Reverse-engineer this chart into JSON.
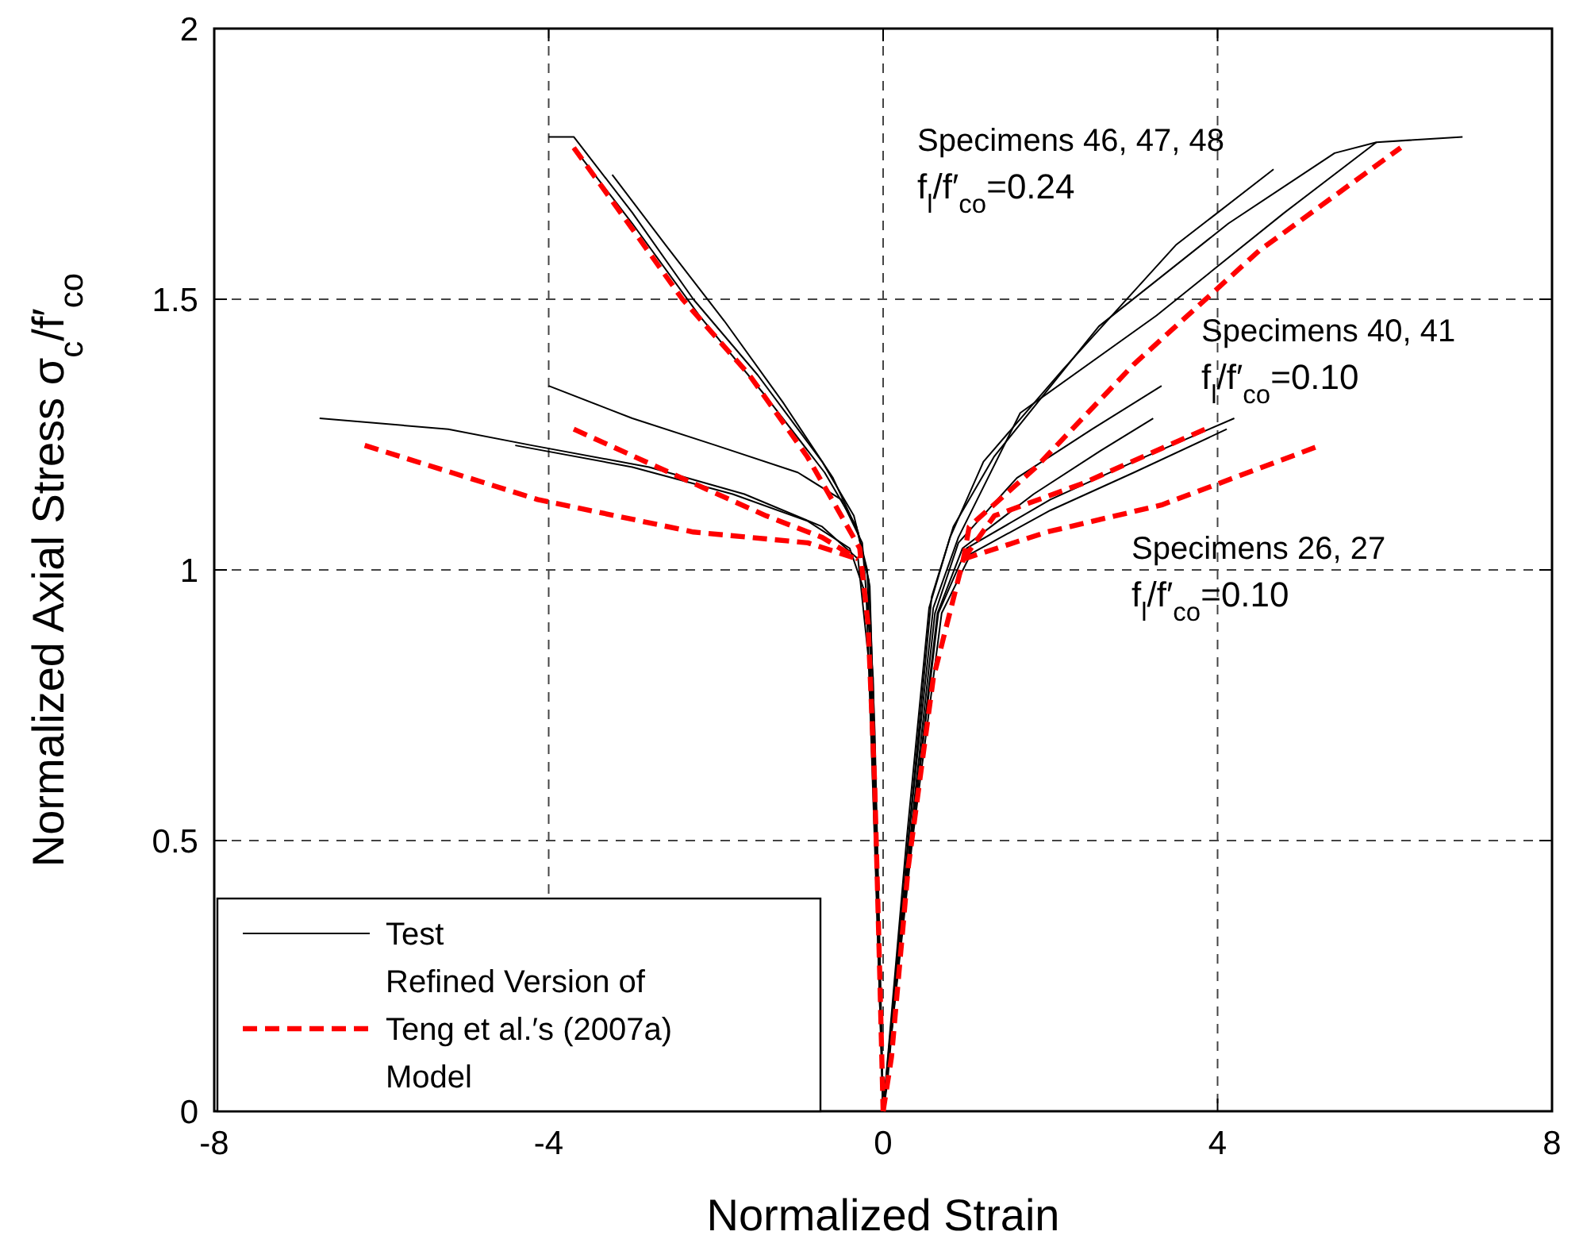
{
  "chart_data": {
    "type": "line",
    "xlabel": "Normalized Strain",
    "ylabel": "Normalized Axial Stress σ$_{c}$/f′$_{co}$",
    "xlim": [
      -8,
      8
    ],
    "ylim": [
      0,
      2
    ],
    "xticks": [
      -8,
      -4,
      0,
      4,
      8
    ],
    "yticks": [
      0,
      0.5,
      1,
      1.5,
      2
    ],
    "grid": true,
    "legend": "bottom left",
    "annotations": [
      "Specimens 46, 47, 48\nf$_{l}$/f′$_{co}$=0.24",
      "Specimens 40, 41\nf$_{l}$/f′$_{co}$=0.10",
      "Specimens 26, 27\nf$_{l}$/f′$_{co}$=0.10"
    ],
    "series": [
      {
        "name": "Test",
        "color": "#000000",
        "line_style": "solid",
        "x": [
          -4,
          -3.7,
          -3.0,
          -2.27,
          -1.5,
          -0.73,
          -0.35,
          -0.19,
          -0.12,
          -0.05,
          0
        ],
        "values": [
          1.8,
          1.8,
          1.66,
          1.5,
          1.36,
          1.2,
          1.1,
          1.0,
          0.7,
          0.3,
          0
        ]
      },
      {
        "color": "#000000",
        "line_style": "solid",
        "x": [
          -3.7,
          -3.0,
          -2.2,
          -1.4,
          -0.7,
          -0.32,
          -0.17,
          -0.1,
          -0.04,
          0
        ],
        "values": [
          1.78,
          1.64,
          1.47,
          1.32,
          1.18,
          1.08,
          0.98,
          0.7,
          0.3,
          0
        ]
      },
      {
        "color": "#000000",
        "line_style": "solid",
        "x": [
          -3.24,
          -2.6,
          -1.9,
          -1.2,
          -0.6,
          -0.3,
          -0.16,
          -0.09,
          0
        ],
        "values": [
          1.73,
          1.6,
          1.46,
          1.31,
          1.17,
          1.07,
          0.97,
          0.6,
          0
        ]
      },
      {
        "color": "#000000",
        "line_style": "solid",
        "x": [
          -6.74,
          -5.2,
          -4.2,
          -2.8,
          -1.66,
          -0.73,
          -0.3,
          -0.15,
          -0.06,
          0
        ],
        "values": [
          1.28,
          1.26,
          1.23,
          1.19,
          1.14,
          1.08,
          1.02,
          0.8,
          0.3,
          0
        ]
      },
      {
        "color": "#000000",
        "line_style": "solid",
        "x": [
          -4,
          -3,
          -2,
          -1.02,
          -0.5,
          -0.25,
          -0.12,
          -0.05,
          0
        ],
        "values": [
          1.34,
          1.28,
          1.23,
          1.18,
          1.13,
          1.05,
          0.8,
          0.3,
          0
        ]
      },
      {
        "color": "#000000",
        "line_style": "solid",
        "x": [
          -4.4,
          -3,
          -1.8,
          -0.9,
          -0.4,
          -0.2,
          -0.08,
          0
        ],
        "values": [
          1.23,
          1.19,
          1.14,
          1.09,
          1.04,
          0.95,
          0.4,
          0
        ]
      },
      {
        "color": "#000000",
        "line_style": "solid",
        "x": [
          0,
          0.05,
          0.3,
          0.58,
          0.84,
          1.33,
          2.58,
          4.13,
          5.4,
          5.9,
          6.93
        ],
        "values": [
          0,
          0.05,
          0.5,
          0.95,
          1.08,
          1.21,
          1.45,
          1.64,
          1.77,
          1.79,
          1.8
        ]
      },
      {
        "color": "#000000",
        "line_style": "solid",
        "x": [
          0,
          0.28,
          0.55,
          0.8,
          1.2,
          2.15,
          3.5,
          4.67
        ],
        "values": [
          0,
          0.5,
          0.93,
          1.06,
          1.2,
          1.37,
          1.6,
          1.74
        ]
      },
      {
        "color": "#000000",
        "line_style": "solid",
        "x": [
          0,
          0.3,
          0.6,
          0.9,
          1.64,
          3.27,
          4.8,
          5.9
        ],
        "values": [
          0,
          0.5,
          0.93,
          1.06,
          1.29,
          1.47,
          1.66,
          1.79
        ]
      },
      {
        "color": "#000000",
        "line_style": "solid",
        "x": [
          0,
          0.32,
          0.62,
          0.9,
          1.6,
          2.5,
          3.33
        ],
        "values": [
          0,
          0.5,
          0.92,
          1.05,
          1.17,
          1.26,
          1.34
        ]
      },
      {
        "color": "#000000",
        "line_style": "solid",
        "x": [
          0,
          0.33,
          0.65,
          0.95,
          1.8,
          2.6,
          3.23
        ],
        "values": [
          0,
          0.5,
          0.92,
          1.04,
          1.14,
          1.22,
          1.28
        ]
      },
      {
        "color": "#000000",
        "line_style": "solid",
        "x": [
          0,
          0.34,
          0.66,
          1.0,
          2.0,
          3.0,
          3.9,
          4.2
        ],
        "values": [
          0,
          0.5,
          0.92,
          1.04,
          1.13,
          1.2,
          1.26,
          1.28
        ]
      },
      {
        "color": "#000000",
        "line_style": "solid",
        "x": [
          0,
          0.35,
          0.7,
          1.05,
          2.0,
          3.0,
          4.11
        ],
        "values": [
          0,
          0.5,
          0.92,
          1.03,
          1.11,
          1.18,
          1.26
        ]
      },
      {
        "name": "Refined Version of\nTeng et al.′s (2007a)\nModel",
        "color": "#ff0000",
        "line_style": "dashed",
        "x": [
          -3.7,
          -3.0,
          -2.4,
          -1.6,
          -0.91,
          -0.5,
          -0.28,
          -0.18,
          -0.1,
          -0.04,
          0
        ],
        "values": [
          1.78,
          1.63,
          1.5,
          1.36,
          1.21,
          1.1,
          1.04,
          0.9,
          0.6,
          0.25,
          0
        ]
      },
      {
        "color": "#ff0000",
        "line_style": "dashed",
        "x": [
          -3.7,
          -2.27,
          -1.4,
          -0.73,
          -0.3
        ],
        "values": [
          1.26,
          1.16,
          1.1,
          1.06,
          1.02
        ]
      },
      {
        "color": "#ff0000",
        "line_style": "dashed",
        "x": [
          -6.2,
          -4.13,
          -2.27,
          -0.9,
          -0.3
        ],
        "values": [
          1.23,
          1.13,
          1.07,
          1.05,
          1.02
        ]
      },
      {
        "color": "#ff0000",
        "line_style": "dashed",
        "x": [
          0,
          0.1,
          0.3,
          0.6,
          0.96,
          1.03,
          1.83,
          3.0,
          4.5,
          6.19
        ],
        "values": [
          0,
          0.1,
          0.45,
          0.8,
          1.02,
          1.08,
          1.19,
          1.38,
          1.59,
          1.78
        ]
      },
      {
        "color": "#ff0000",
        "line_style": "dashed",
        "x": [
          0.96,
          1.33,
          2.39,
          3.85
        ],
        "values": [
          1.02,
          1.1,
          1.16,
          1.26
        ]
      },
      {
        "color": "#ff0000",
        "line_style": "dashed",
        "x": [
          0.96,
          1.96,
          3.33,
          5.23
        ],
        "values": [
          1.02,
          1.07,
          1.12,
          1.23
        ]
      }
    ]
  }
}
